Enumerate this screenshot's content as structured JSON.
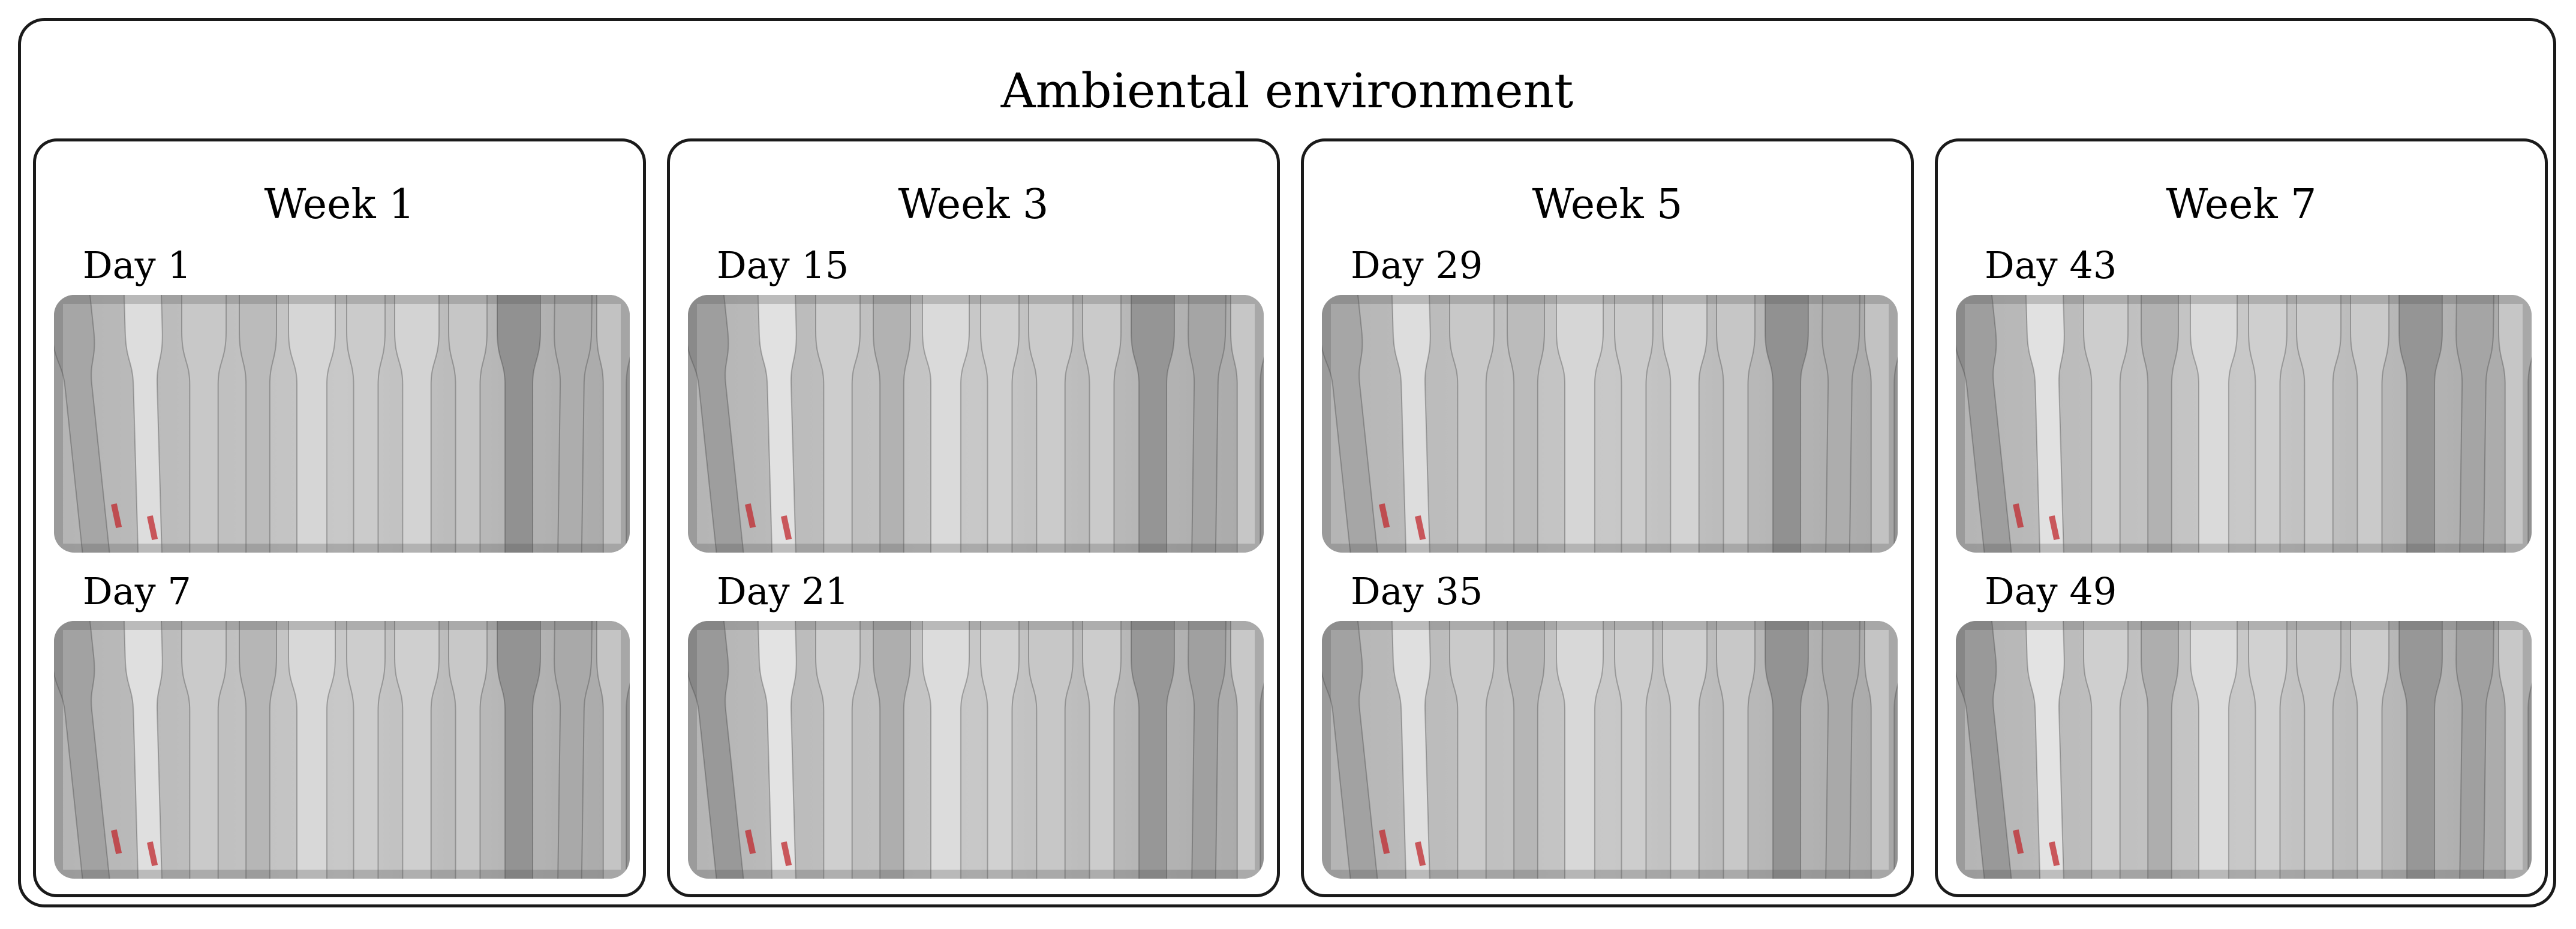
{
  "title": "Ambiental environment",
  "weeks": [
    {
      "label": "Week 1",
      "days": [
        {
          "label": "Day 1"
        },
        {
          "label": "Day 7"
        }
      ]
    },
    {
      "label": "Week 3",
      "days": [
        {
          "label": "Day 15"
        },
        {
          "label": "Day 21"
        }
      ]
    },
    {
      "label": "Week 5",
      "days": [
        {
          "label": "Day 29"
        },
        {
          "label": "Day 35"
        }
      ]
    },
    {
      "label": "Week 7",
      "days": [
        {
          "label": "Day 43"
        },
        {
          "label": "Day 49"
        }
      ]
    }
  ],
  "colors": {
    "photo_background": "#c8c8c8",
    "specimen_light": "#e4e4e4",
    "specimen_dark": "#5a5a5a",
    "label_mark": "#c0282e",
    "border": "#1a1a1a"
  }
}
